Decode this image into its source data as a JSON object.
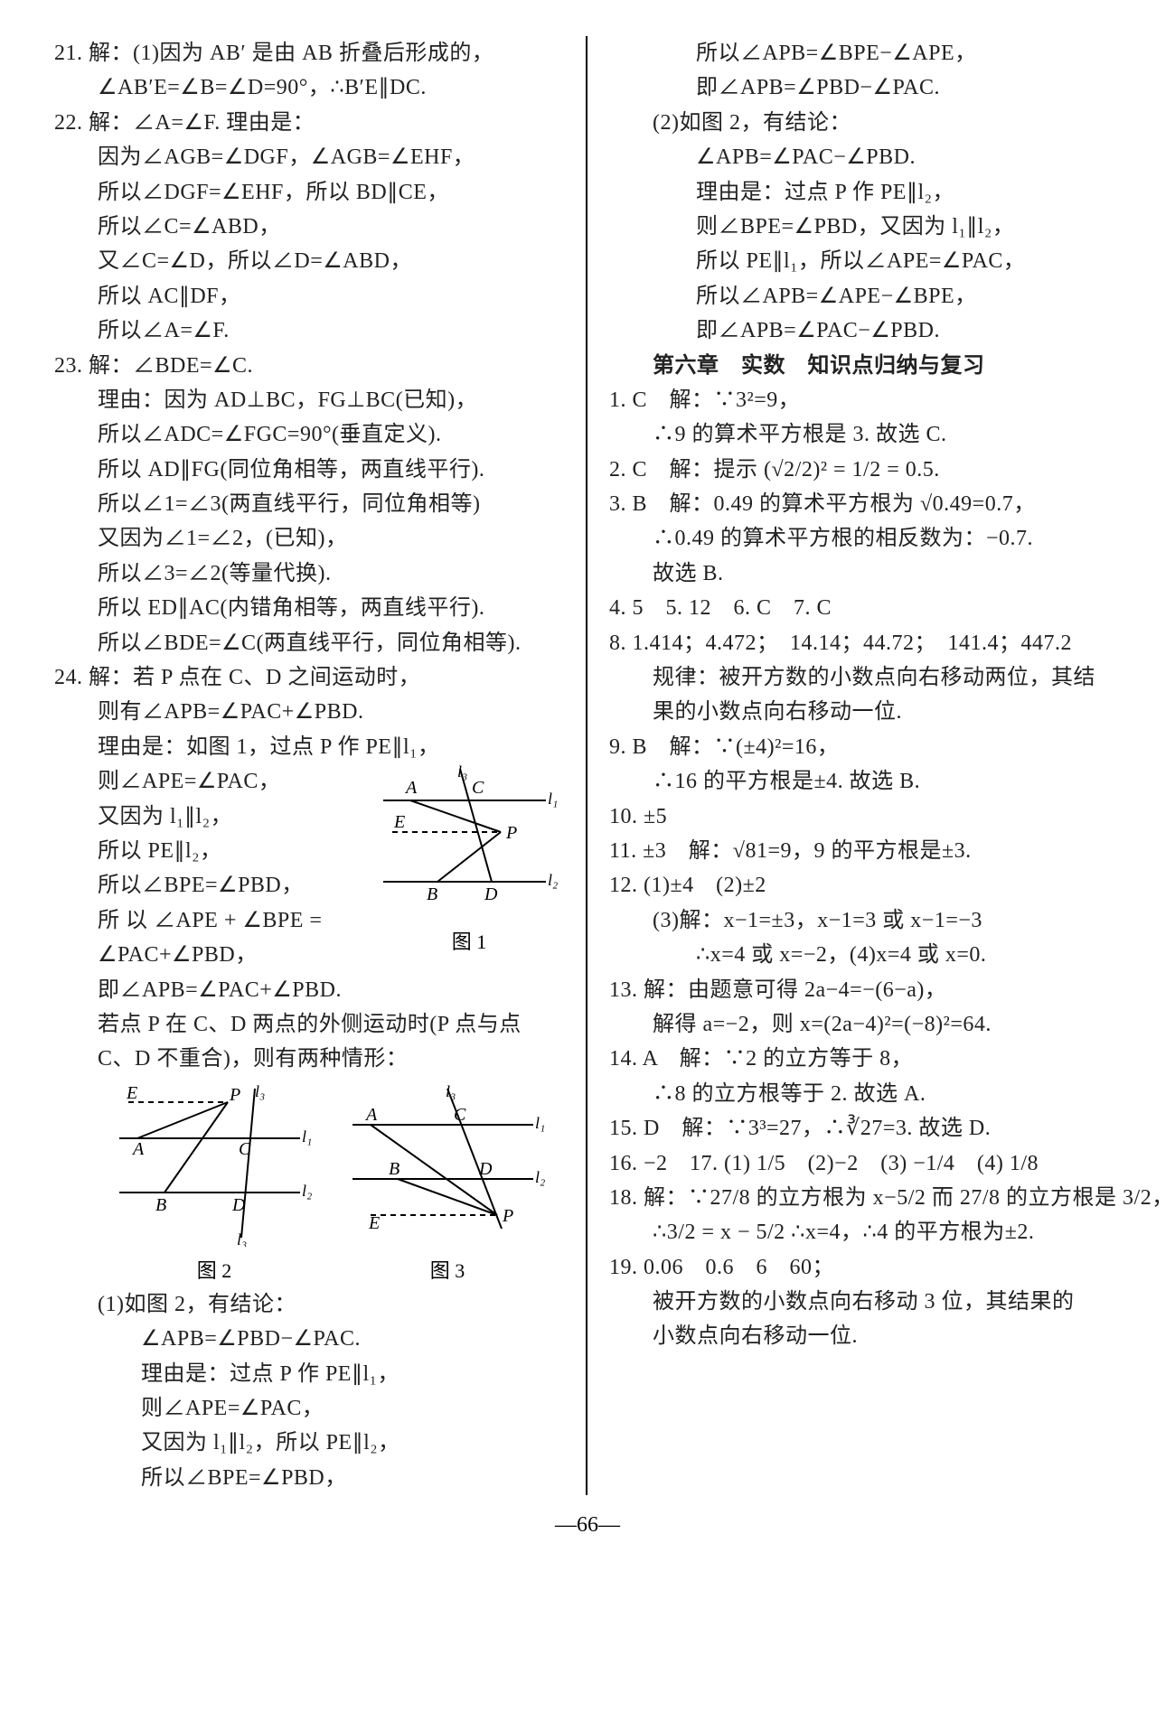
{
  "footer": "—66—",
  "figs": {
    "fig1_caption": "图 1",
    "fig2_caption": "图 2",
    "fig3_caption": "图 3",
    "label_A": "A",
    "label_B": "B",
    "label_C": "C",
    "label_D": "D",
    "label_E": "E",
    "label_P": "P",
    "label_l1": "l₁",
    "label_l2": "l₂",
    "label_l3": "l₃",
    "line_color": "#000000",
    "dash_color": "#000000",
    "bg_color": "#ffffff"
  },
  "left": [
    {
      "cls": "line",
      "txt": "21. 解：(1)因为 AB′ 是由 AB 折叠后形成的，"
    },
    {
      "cls": "line indent1",
      "txt": "∠AB′E=∠B=∠D=90°，∴B′E∥DC."
    },
    {
      "cls": "line",
      "txt": "22. 解：∠A=∠F. 理由是："
    },
    {
      "cls": "line indent1",
      "txt": "因为∠AGB=∠DGF，∠AGB=∠EHF，"
    },
    {
      "cls": "line indent1",
      "txt": "所以∠DGF=∠EHF，所以 BD∥CE，"
    },
    {
      "cls": "line indent1",
      "txt": "所以∠C=∠ABD，"
    },
    {
      "cls": "line indent1",
      "txt": "又∠C=∠D，所以∠D=∠ABD，"
    },
    {
      "cls": "line indent1",
      "txt": "所以 AC∥DF，"
    },
    {
      "cls": "line indent1",
      "txt": "所以∠A=∠F."
    },
    {
      "cls": "line",
      "txt": "23. 解：∠BDE=∠C."
    },
    {
      "cls": "line indent1",
      "txt": "理由：因为 AD⊥BC，FG⊥BC(已知)，"
    },
    {
      "cls": "line indent1",
      "txt": "所以∠ADC=∠FGC=90°(垂直定义)."
    },
    {
      "cls": "line indent1",
      "txt": "所以 AD∥FG(同位角相等，两直线平行)."
    },
    {
      "cls": "line indent1",
      "txt": "所以∠1=∠3(两直线平行，同位角相等)"
    },
    {
      "cls": "line indent1",
      "txt": "又因为∠1=∠2，(已知)，"
    },
    {
      "cls": "line indent1",
      "txt": "所以∠3=∠2(等量代换)."
    },
    {
      "cls": "line indent1",
      "txt": "所以 ED∥AC(内错角相等，两直线平行)."
    },
    {
      "cls": "line indent1",
      "txt": "所以∠BDE=∠C(两直线平行，同位角相等)."
    },
    {
      "cls": "line",
      "txt": "24. 解：若 P 点在 C、D 之间运动时，"
    },
    {
      "cls": "line indent1",
      "txt": "则有∠APB=∠PAC+∠PBD."
    },
    {
      "cls": "line indent1",
      "txt": "理由是：如图 1，过点 P 作 PE∥l₁，"
    }
  ],
  "left_fig1_text": [
    {
      "cls": "line indent1",
      "txt": "则∠APE=∠PAC，"
    },
    {
      "cls": "line indent1",
      "txt": "又因为 l₁∥l₂，"
    },
    {
      "cls": "line indent1",
      "txt": "所以 PE∥l₂，"
    },
    {
      "cls": "line indent1",
      "txt": "所以∠BPE=∠PBD，"
    },
    {
      "cls": "line indent1",
      "txt": "所 以 ∠APE + ∠BPE ="
    },
    {
      "cls": "line indent1",
      "txt": "∠PAC+∠PBD，"
    }
  ],
  "left_after_fig1": [
    {
      "cls": "line indent1",
      "txt": "即∠APB=∠PAC+∠PBD."
    },
    {
      "cls": "line indent1",
      "txt": "若点 P 在 C、D 两点的外侧运动时(P 点与点"
    },
    {
      "cls": "line indent1",
      "txt": "C、D 不重合)，则有两种情形："
    }
  ],
  "left_bottom": [
    {
      "cls": "line indent1",
      "txt": "(1)如图 2，有结论："
    },
    {
      "cls": "line indent2",
      "txt": "∠APB=∠PBD−∠PAC."
    },
    {
      "cls": "line indent2",
      "txt": "理由是：过点 P 作 PE∥l₁，"
    },
    {
      "cls": "line indent2",
      "txt": "则∠APE=∠PAC，"
    },
    {
      "cls": "line indent2",
      "txt": "又因为 l₁∥l₂，所以 PE∥l₂，"
    },
    {
      "cls": "line indent2",
      "txt": "所以∠BPE=∠PBD，"
    }
  ],
  "right": [
    {
      "cls": "line indent2",
      "txt": "所以∠APB=∠BPE−∠APE，"
    },
    {
      "cls": "line indent2",
      "txt": "即∠APB=∠PBD−∠PAC."
    },
    {
      "cls": "line indent1",
      "txt": "(2)如图 2，有结论："
    },
    {
      "cls": "line indent2",
      "txt": "∠APB=∠PAC−∠PBD."
    },
    {
      "cls": "line indent2",
      "txt": "理由是：过点 P 作 PE∥l₂，"
    },
    {
      "cls": "line indent2",
      "txt": "则∠BPE=∠PBD，又因为 l₁∥l₂，"
    },
    {
      "cls": "line indent2",
      "txt": "所以 PE∥l₁，所以∠APE=∠PAC，"
    },
    {
      "cls": "line indent2",
      "txt": "所以∠APB=∠APE−∠BPE，"
    },
    {
      "cls": "line indent2",
      "txt": "即∠APB=∠PAC−∠PBD."
    },
    {
      "cls": "line indent1 bold",
      "txt": "第六章　实数　知识点归纳与复习"
    },
    {
      "cls": "line",
      "txt": "1. C　解：∵3²=9，"
    },
    {
      "cls": "line indent1",
      "txt": "∴9 的算术平方根是 3. 故选 C."
    },
    {
      "cls": "line",
      "txt": "2. C　解：提示 (√2/2)² = 1/2 = 0.5."
    },
    {
      "cls": "line",
      "txt": "3. B　解：0.49 的算术平方根为 √0.49=0.7，"
    },
    {
      "cls": "line indent1",
      "txt": "∴0.49 的算术平方根的相反数为：−0.7."
    },
    {
      "cls": "line indent1",
      "txt": "故选 B."
    },
    {
      "cls": "line",
      "txt": "4. 5　5. 12　6. C　7. C"
    },
    {
      "cls": "line",
      "txt": "8. 1.414；4.472；　14.14；44.72；　141.4；447.2"
    },
    {
      "cls": "line indent1",
      "txt": "规律：被开方数的小数点向右移动两位，其结"
    },
    {
      "cls": "line indent1",
      "txt": "果的小数点向右移动一位."
    },
    {
      "cls": "line",
      "txt": "9. B　解：∵(±4)²=16，"
    },
    {
      "cls": "line indent1",
      "txt": "∴16 的平方根是±4. 故选 B."
    },
    {
      "cls": "line",
      "txt": "10. ±5"
    },
    {
      "cls": "line",
      "txt": "11. ±3　解：√81=9，9 的平方根是±3."
    },
    {
      "cls": "line",
      "txt": "12. (1)±4　(2)±2"
    },
    {
      "cls": "line indent1",
      "txt": "(3)解：x−1=±3，x−1=3 或 x−1=−3"
    },
    {
      "cls": "line indent2",
      "txt": "∴x=4 或 x=−2，(4)x=4 或 x=0."
    },
    {
      "cls": "line",
      "txt": "13. 解：由题意可得 2a−4=−(6−a)，"
    },
    {
      "cls": "line indent1",
      "txt": "解得 a=−2，则 x=(2a−4)²=(−8)²=64."
    },
    {
      "cls": "line",
      "txt": "14. A　解：∵2 的立方等于 8，"
    },
    {
      "cls": "line indent1",
      "txt": "∴8 的立方根等于 2. 故选 A."
    },
    {
      "cls": "line",
      "txt": "15. D　解：∵3³=27，∴∛27=3. 故选 D."
    },
    {
      "cls": "line",
      "txt": "16. −2　17. (1) 1/5　(2)−2　(3) −1/4　(4) 1/8"
    },
    {
      "cls": "line",
      "txt": "18. 解：∵27/8 的立方根为 x−5/2 而 27/8 的立方根是 3/2，"
    },
    {
      "cls": "line indent1",
      "txt": "∴3/2 = x − 5/2 ∴x=4，∴4 的平方根为±2."
    },
    {
      "cls": "line",
      "txt": "19. 0.06　0.6　6　60；"
    },
    {
      "cls": "line indent1",
      "txt": "被开方数的小数点向右移动 3 位，其结果的"
    },
    {
      "cls": "line indent1",
      "txt": "小数点向右移动一位."
    }
  ]
}
